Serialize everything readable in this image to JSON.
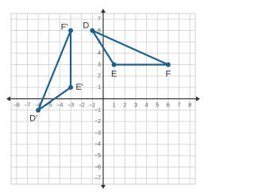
{
  "chart_data": {
    "type": "polygon",
    "xlim": [
      -8.5,
      8.5
    ],
    "ylim": [
      -7.5,
      7.5
    ],
    "xticks": [
      {
        "value": -8,
        "label": "−8"
      },
      {
        "value": -7,
        "label": "−7"
      },
      {
        "value": -6,
        "label": "−6"
      },
      {
        "value": -5,
        "label": "−5"
      },
      {
        "value": -4,
        "label": "−4"
      },
      {
        "value": -3,
        "label": "−3"
      },
      {
        "value": -2,
        "label": "−2"
      },
      {
        "value": -1,
        "label": "−1"
      },
      1,
      2,
      3,
      4,
      5,
      6,
      7,
      8
    ],
    "yticks": [
      {
        "value": -7,
        "label": "−7"
      },
      {
        "value": -6,
        "label": "−6"
      },
      {
        "value": -5,
        "label": "−5"
      },
      {
        "value": -4,
        "label": "−4"
      },
      {
        "value": -3,
        "label": "−3"
      },
      {
        "value": -2,
        "label": "−2"
      },
      {
        "value": -1,
        "label": "−1"
      },
      1,
      2,
      3,
      4,
      5,
      6,
      7
    ],
    "grid": true,
    "series": [
      {
        "color": "#1f5f8b",
        "x": [
          -1,
          1,
          6
        ],
        "values": [
          6,
          3,
          3
        ],
        "labels": [
          "D",
          "E",
          "F"
        ]
      },
      {
        "color": "#1f5f8b",
        "x": [
          -6,
          -3,
          -3
        ],
        "values": [
          -1,
          1,
          6
        ],
        "labels": [
          "D'",
          "E'",
          "F'"
        ]
      }
    ]
  }
}
